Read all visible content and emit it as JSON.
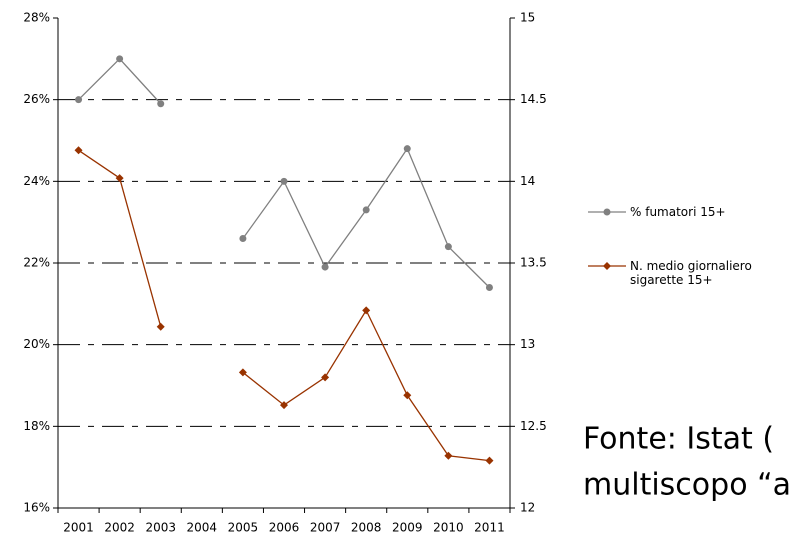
{
  "chart_data": {
    "type": "line",
    "categories": [
      "2001",
      "2002",
      "2003",
      "2004",
      "2005",
      "2006",
      "2007",
      "2008",
      "2009",
      "2010",
      "2011"
    ],
    "series": [
      {
        "name": "% fumatori 15+",
        "color": "#808080",
        "marker": "circle",
        "values": [
          26.0,
          27.0,
          25.9,
          null,
          22.6,
          24.0,
          21.9,
          23.3,
          24.8,
          22.4,
          21.4
        ]
      },
      {
        "name": "N. medio giornaliero sigarette 15+",
        "color": "#993300",
        "marker": "diamond",
        "axis": "y2",
        "values": [
          14.19,
          14.02,
          13.11,
          null,
          12.83,
          12.63,
          12.8,
          13.21,
          12.69,
          12.32,
          12.29
        ]
      }
    ],
    "ylim": [
      16,
      28
    ],
    "yticks": [
      {
        "value": 16,
        "label": "16%"
      },
      {
        "value": 18,
        "label": "18%"
      },
      {
        "value": 20,
        "label": "20%"
      },
      {
        "value": 22,
        "label": "22%"
      },
      {
        "value": 24,
        "label": "24%"
      },
      {
        "value": 26,
        "label": "26%"
      },
      {
        "value": 28,
        "label": "28%"
      }
    ],
    "y2lim": [
      12,
      15
    ],
    "y2ticks": [
      12,
      12.5,
      13,
      13.5,
      14,
      14.5,
      15
    ],
    "grid": true,
    "legend": "right",
    "annotations": [
      "Fonte: Istat (",
      "multiscopo “a"
    ]
  }
}
